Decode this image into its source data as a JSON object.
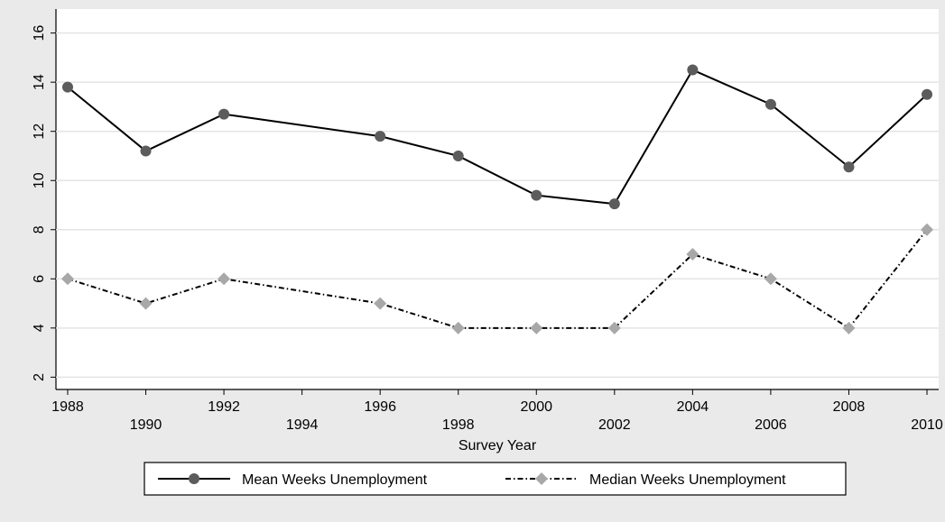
{
  "chart_data": {
    "type": "line",
    "x_label": "Survey Year",
    "x": [
      1988,
      1990,
      1992,
      1996,
      1998,
      2000,
      2002,
      2004,
      2006,
      2008,
      2010
    ],
    "series": [
      {
        "name": "Mean Weeks Unemployment",
        "color": "#000000",
        "marker_color": "#5c5c5c",
        "marker": "circle",
        "dash": "none",
        "values": [
          13.8,
          11.2,
          12.7,
          11.8,
          11.0,
          9.4,
          9.05,
          14.5,
          13.1,
          10.55,
          13.5
        ]
      },
      {
        "name": "Median Weeks Unemployment",
        "color": "#000000",
        "marker_color": "#a8a8a8",
        "marker": "diamond",
        "dash": "6 3 1.5 3",
        "values": [
          6,
          5,
          6,
          5,
          4,
          4,
          4,
          7,
          6,
          4,
          8
        ]
      }
    ],
    "xlim": [
      1987.7,
      2010.3
    ],
    "xticks": [
      1988,
      1990,
      1992,
      1994,
      1996,
      1998,
      2000,
      2002,
      2004,
      2006,
      2008,
      2010
    ],
    "ylim": [
      1.5,
      16.5
    ],
    "yticks": [
      2,
      4,
      6,
      8,
      10,
      12,
      14,
      16
    ],
    "grid": true,
    "legend": "bottom"
  }
}
